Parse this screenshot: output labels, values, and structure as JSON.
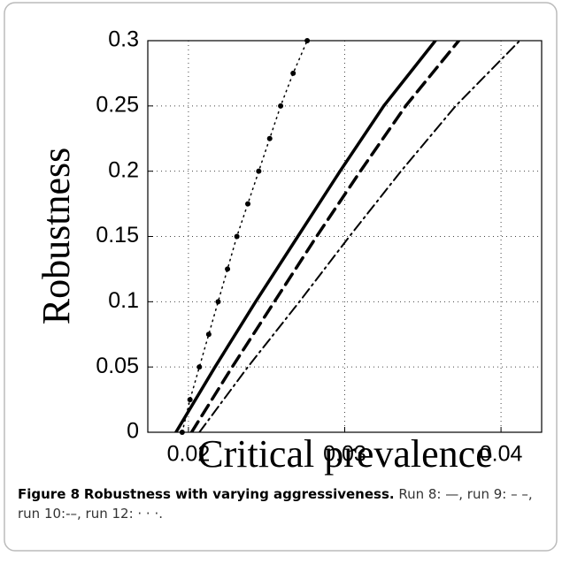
{
  "chart_data": {
    "type": "line",
    "xlabel": "Critical prevalence",
    "ylabel": "Robustness",
    "xlim": [
      0.0174,
      0.0426
    ],
    "ylim": [
      0,
      0.3
    ],
    "xticks": [
      0.02,
      0.03,
      0.04
    ],
    "yticks": [
      0,
      0.05,
      0.1,
      0.15,
      0.2,
      0.25,
      0.3
    ],
    "grid": true,
    "series": [
      {
        "color": "#000000",
        "linestyle": "solid",
        "x": [
          0.0192,
          0.0217,
          0.0243,
          0.027,
          0.0297,
          0.0325,
          0.0358
        ],
        "values": [
          0,
          0.05,
          0.1,
          0.15,
          0.2,
          0.25,
          0.3
        ]
      },
      {
        "color": "#000000",
        "linestyle": "dashed",
        "x": [
          0.0202,
          0.0228,
          0.0255,
          0.0282,
          0.031,
          0.0339,
          0.0373
        ],
        "values": [
          0,
          0.05,
          0.1,
          0.15,
          0.2,
          0.25,
          0.3
        ]
      },
      {
        "color": "#000000",
        "linestyle": "dashdot",
        "x": [
          0.0207,
          0.0238,
          0.0271,
          0.0303,
          0.0336,
          0.0371,
          0.0412
        ],
        "values": [
          0,
          0.05,
          0.1,
          0.15,
          0.2,
          0.25,
          0.3
        ]
      },
      {
        "color": "#000000",
        "linestyle": "dotted",
        "marker": true,
        "x": [
          0.0196,
          0.0201,
          0.0207,
          0.0213,
          0.0219,
          0.0225,
          0.0231,
          0.0238,
          0.0245,
          0.0252,
          0.0259,
          0.0267,
          0.0276
        ],
        "values": [
          0,
          0.025,
          0.05,
          0.075,
          0.1,
          0.125,
          0.15,
          0.175,
          0.2,
          0.225,
          0.25,
          0.275,
          0.3
        ]
      }
    ]
  },
  "caption": {
    "label": "Figure 8",
    "title": "Robustness with varying aggressiveness.",
    "text": "Run 8: —, run 9: – –, run 10:-–, run 12: · · ·."
  }
}
